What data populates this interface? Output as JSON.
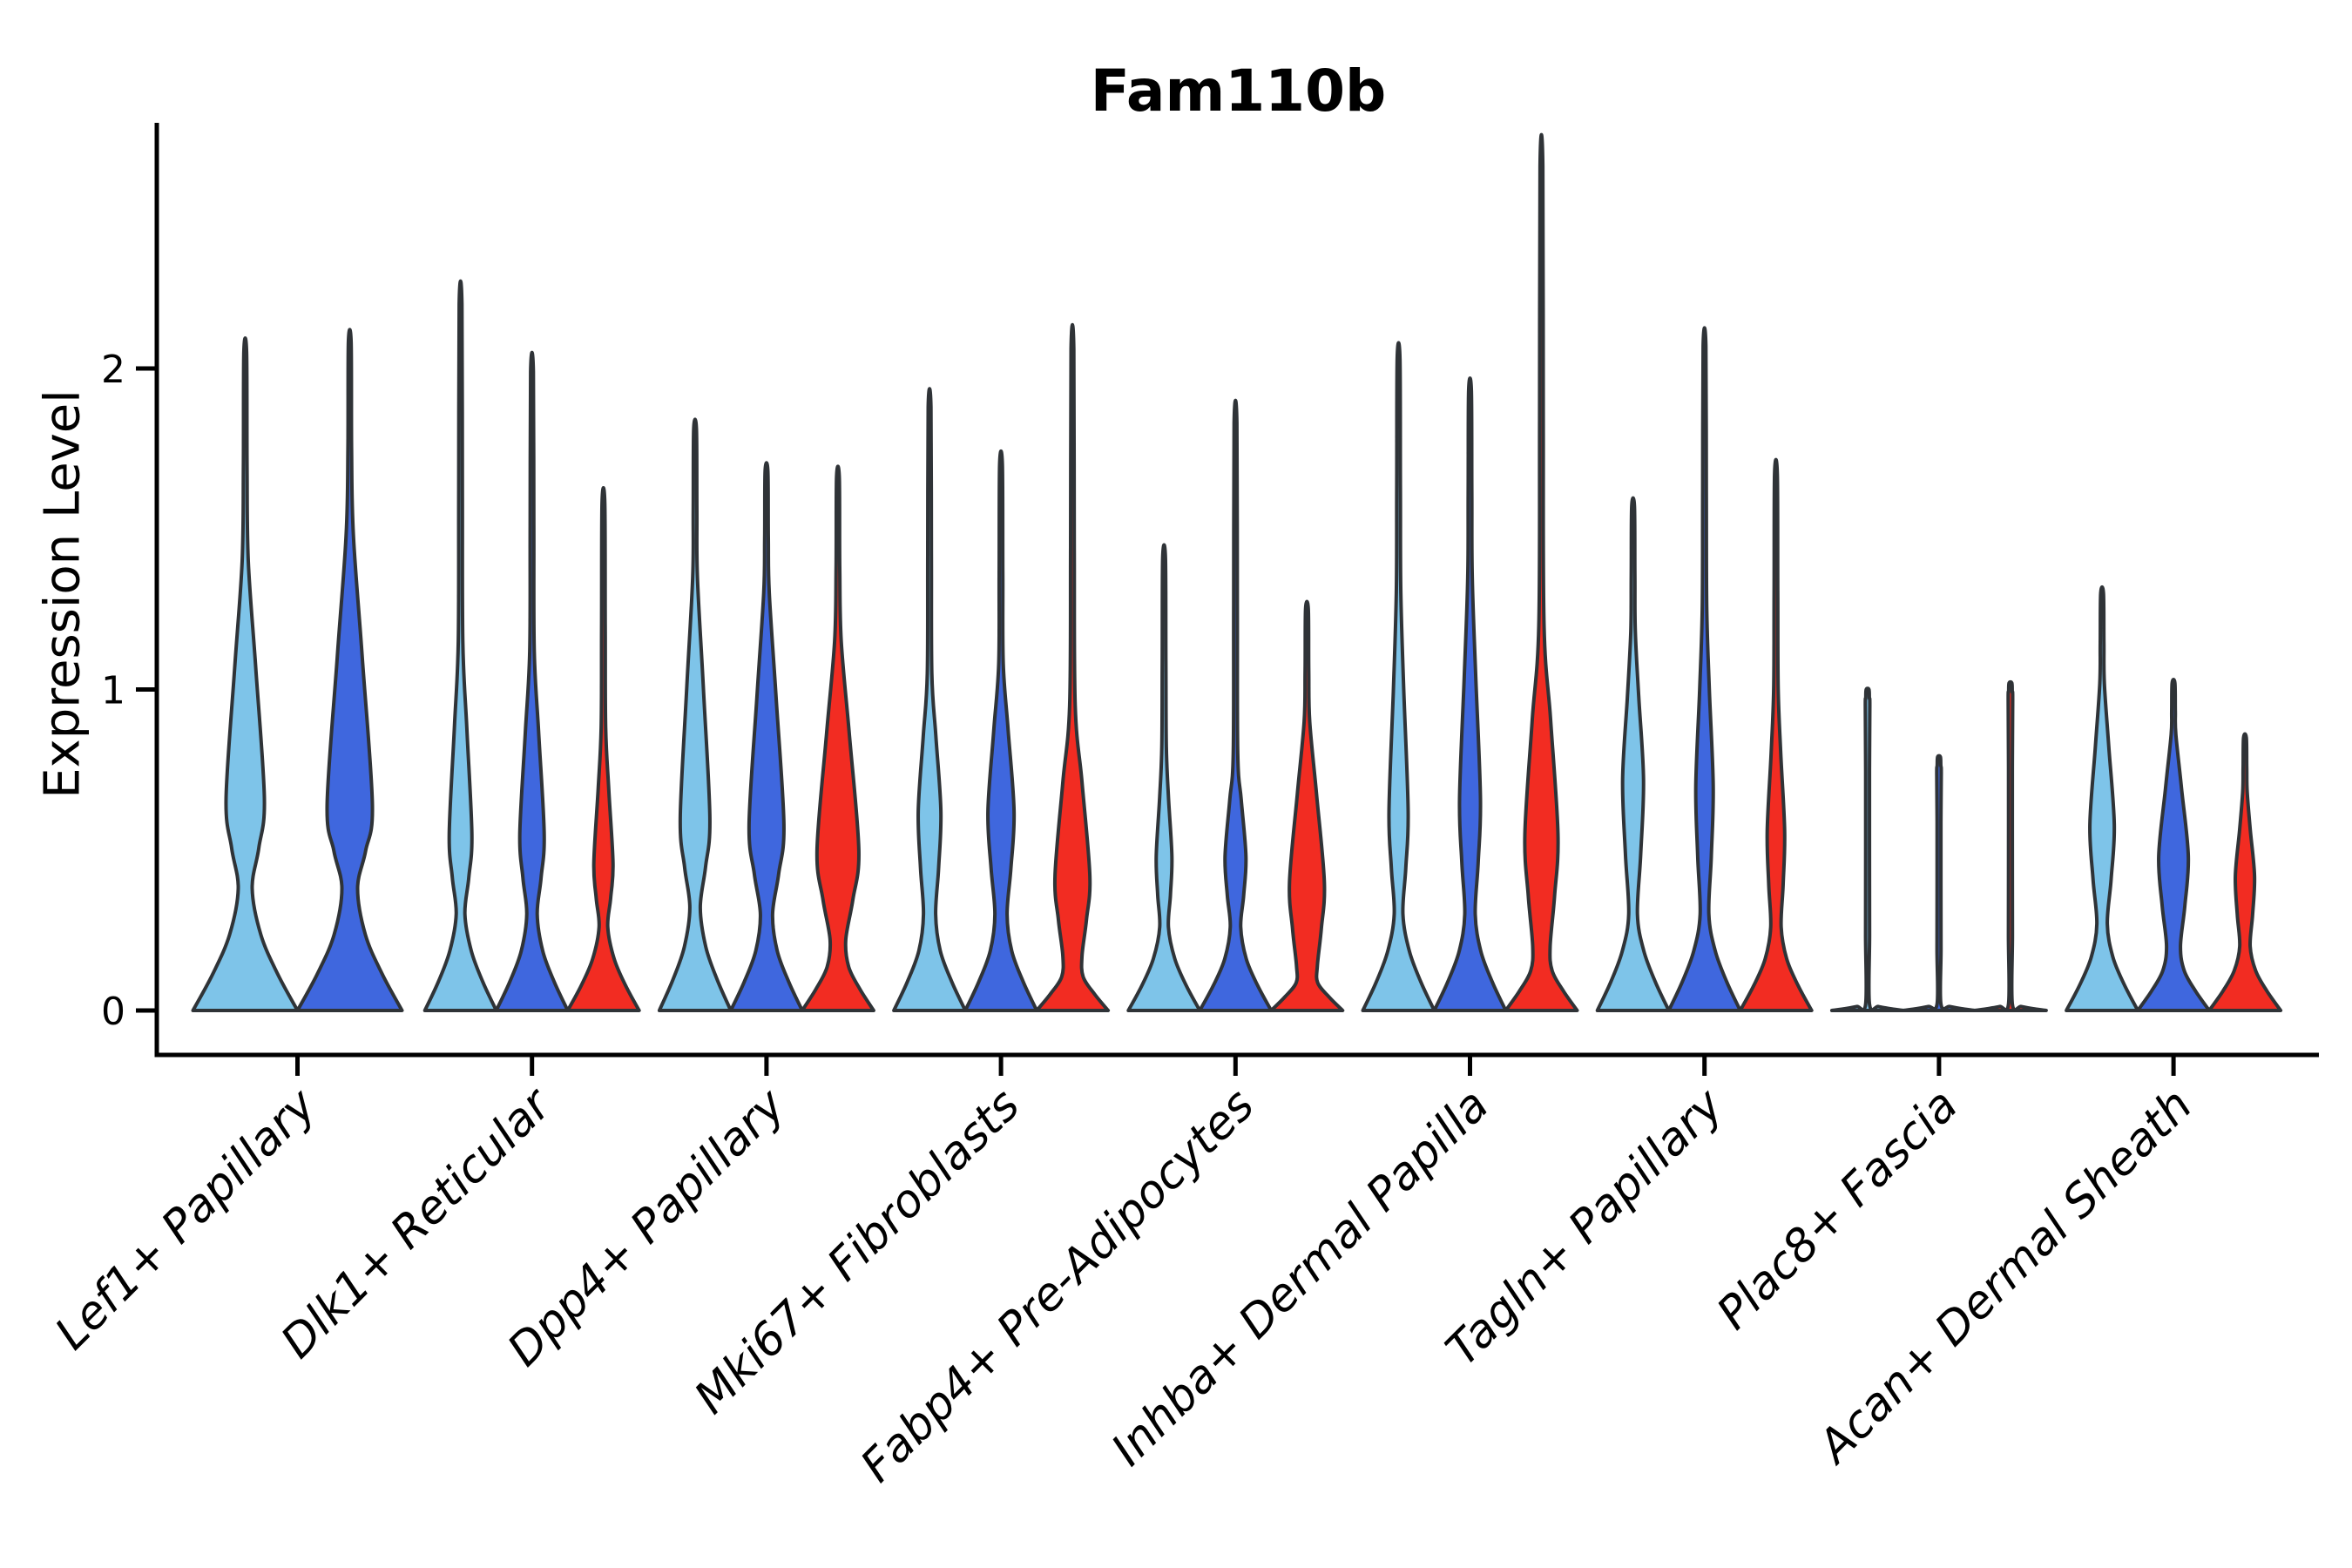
{
  "figure": {
    "title": "Fam110b",
    "y_axis_label": "Expression Level"
  },
  "chart_data": {
    "type": "violin",
    "title": "Fam110b",
    "xlabel": "",
    "ylabel": "Expression Level",
    "yticks": [
      0,
      1,
      2
    ],
    "ylim": [
      -0.14,
      2.77
    ],
    "grid": false,
    "legend": "none",
    "categories": [
      "Lef1+ Papillary",
      "Dlk1+ Reticular",
      "Dpp4+ Papillary",
      "Mki67+ Fibroblasts",
      "Fabp4+ Pre-Adipocytes",
      "Inhba+ Dermal Papilla",
      "Tagln+ Papillary",
      "Plac8+ Fascia",
      "Acan+ Dermal Sheath"
    ],
    "series_colors": {
      "light_blue": "#7ec4e9",
      "dark_blue": "#3f67de",
      "red": "#f22c22"
    },
    "outline_color": "#2f3337",
    "axis_color": "#000000",
    "groups": [
      {
        "category": "Lef1+ Papillary",
        "violins": [
          {
            "series": "light_blue",
            "max": 2.05,
            "base": 60,
            "waist": [
              0.38,
              8
            ],
            "bulge": [
              0.66,
              22
            ],
            "bulge_top": 1.4
          },
          {
            "series": "dark_blue",
            "max": 2.08,
            "base": 60,
            "waist": [
              0.38,
              9
            ],
            "bulge": [
              0.64,
              26
            ],
            "bulge_top": 1.48
          }
        ]
      },
      {
        "category": "Dlk1+ Reticular",
        "violins": [
          {
            "series": "light_blue",
            "max": 2.2,
            "base": 41,
            "waist": [
              0.3,
              5
            ],
            "bulge": [
              0.55,
              13
            ],
            "bulge_top": 1.15
          },
          {
            "series": "dark_blue",
            "max": 1.99,
            "base": 41,
            "waist": [
              0.3,
              6
            ],
            "bulge": [
              0.55,
              14
            ],
            "bulge_top": 1.12
          },
          {
            "series": "red",
            "max": 1.58,
            "base": 41,
            "waist": [
              0.26,
              5
            ],
            "bulge": [
              0.46,
              11
            ],
            "bulge_top": 0.88
          }
        ]
      },
      {
        "category": "Dpp4+ Papillary",
        "violins": [
          {
            "series": "light_blue",
            "max": 1.81,
            "base": 41,
            "waist": [
              0.32,
              6
            ],
            "bulge": [
              0.6,
              17
            ],
            "bulge_top": 1.35
          },
          {
            "series": "dark_blue",
            "max": 1.68,
            "base": 41,
            "waist": [
              0.3,
              7
            ],
            "bulge": [
              0.58,
              20
            ],
            "bulge_top": 1.3
          },
          {
            "series": "red",
            "max": 1.66,
            "base": 41,
            "waist": [
              0.22,
              9
            ],
            "bulge": [
              0.5,
              24
            ],
            "bulge_top": 1.15
          }
        ]
      },
      {
        "category": "Mki67+ Fibroblasts",
        "violins": [
          {
            "series": "light_blue",
            "max": 1.88,
            "base": 41,
            "waist": [
              0.3,
              7
            ],
            "bulge": [
              0.62,
              13
            ],
            "bulge_top": 1.05
          },
          {
            "series": "dark_blue",
            "max": 1.7,
            "base": 41,
            "waist": [
              0.3,
              7
            ],
            "bulge": [
              0.62,
              15
            ],
            "bulge_top": 1.08
          },
          {
            "series": "red",
            "max": 2.06,
            "base": 41,
            "waist": [
              0.17,
              11
            ],
            "bulge": [
              0.42,
              20
            ],
            "bulge_top": 0.95
          }
        ]
      },
      {
        "category": "Fabp4+ Pre-Adipocytes",
        "violins": [
          {
            "series": "light_blue",
            "max": 1.41,
            "base": 41,
            "waist": [
              0.26,
              5
            ],
            "bulge": [
              0.48,
              9
            ],
            "bulge_top": 0.82
          },
          {
            "series": "dark_blue",
            "max": 1.83,
            "base": 41,
            "waist": [
              0.26,
              6
            ],
            "bulge": [
              0.48,
              12
            ],
            "bulge_top": 0.8
          },
          {
            "series": "red",
            "max": 1.25,
            "base": 41,
            "waist": [
              0.14,
              12
            ],
            "bulge": [
              0.4,
              20
            ],
            "bulge_top": 0.9
          }
        ]
      },
      {
        "category": "Inhba+ Dermal Papilla",
        "violins": [
          {
            "series": "light_blue",
            "max": 2.03,
            "base": 41,
            "waist": [
              0.3,
              5
            ],
            "bulge": [
              0.62,
              11
            ],
            "bulge_top": 1.3
          },
          {
            "series": "dark_blue",
            "max": 1.93,
            "base": 41,
            "waist": [
              0.3,
              6
            ],
            "bulge": [
              0.66,
              12
            ],
            "bulge_top": 1.35
          },
          {
            "series": "red",
            "max": 2.63,
            "base": 41,
            "waist": [
              0.2,
              10
            ],
            "bulge": [
              0.55,
              19
            ],
            "bulge_top": 1.2
          }
        ]
      },
      {
        "category": "Tagln+ Papillary",
        "violins": [
          {
            "series": "light_blue",
            "max": 1.57,
            "base": 41,
            "waist": [
              0.3,
              5
            ],
            "bulge": [
              0.72,
              12
            ],
            "bulge_top": 1.18
          },
          {
            "series": "dark_blue",
            "max": 2.07,
            "base": 41,
            "waist": [
              0.3,
              5
            ],
            "bulge": [
              0.7,
              10
            ],
            "bulge_top": 1.25
          },
          {
            "series": "red",
            "max": 1.67,
            "base": 41,
            "waist": [
              0.26,
              6
            ],
            "bulge": [
              0.56,
              10
            ],
            "bulge_top": 1.0
          }
        ]
      },
      {
        "category": "Plac8+ Fascia",
        "violins": [
          {
            "series": "light_blue",
            "max": 1.0,
            "base": 41,
            "waist": [
              0.02,
              2.2
            ],
            "bulge": [
              0.5,
              2.2
            ],
            "bulge_top": 0.95
          },
          {
            "series": "dark_blue",
            "max": 0.79,
            "base": 41,
            "waist": [
              0.02,
              2.2
            ],
            "bulge": [
              0.4,
              2.2
            ],
            "bulge_top": 0.74
          },
          {
            "series": "red",
            "max": 1.02,
            "base": 41,
            "waist": [
              0.02,
              2.2
            ],
            "bulge": [
              0.5,
              2.2
            ],
            "bulge_top": 0.97
          }
        ]
      },
      {
        "category": "Acan+ Dermal Sheath",
        "violins": [
          {
            "series": "light_blue",
            "max": 1.3,
            "base": 41,
            "waist": [
              0.27,
              6
            ],
            "bulge": [
              0.58,
              14
            ],
            "bulge_top": 1.02
          },
          {
            "series": "dark_blue",
            "max": 1.02,
            "base": 41,
            "waist": [
              0.2,
              8
            ],
            "bulge": [
              0.48,
              17
            ],
            "bulge_top": 0.86
          },
          {
            "series": "red",
            "max": 0.85,
            "base": 41,
            "waist": [
              0.2,
              6
            ],
            "bulge": [
              0.42,
              11
            ],
            "bulge_top": 0.68
          }
        ]
      }
    ]
  }
}
